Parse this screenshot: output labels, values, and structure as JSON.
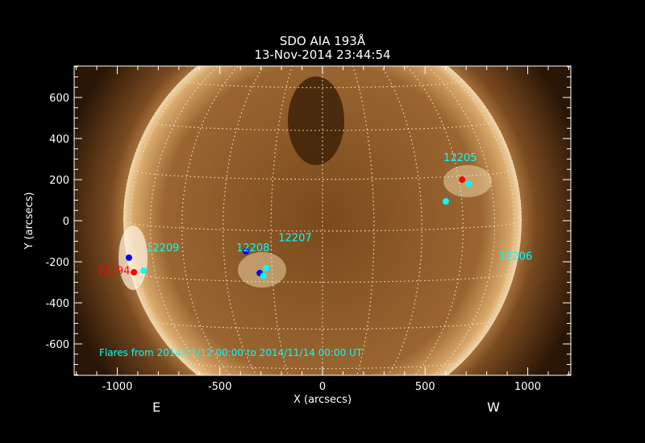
{
  "chart_data": {
    "type": "scatter",
    "title": "SDO AIA 193Å",
    "subtitle": "13-Nov-2014 23:44:54",
    "xlabel": "X (arcsecs)",
    "ylabel": "Y (arcsecs)",
    "xlim": [
      -1210,
      1210
    ],
    "ylim": [
      -753,
      753
    ],
    "xticks": [
      -1000,
      -500,
      0,
      500,
      1000
    ],
    "yticks": [
      -600,
      -400,
      -200,
      0,
      200,
      400,
      600
    ],
    "solar_radius_arcsec": 969,
    "grid": "heliographic, 15 degree spacing, dotted",
    "east_label": "E",
    "west_label": "W",
    "annotation": "Flares from 2014/11/12 00:00 to 2014/11/14 00:00 UT",
    "colors": {
      "red": "#ff0000",
      "blue": "#0000ff",
      "cyan": "#00ffff",
      "sun": "#b5793a"
    },
    "points": [
      {
        "x": -943,
        "y": -180,
        "color": "blue"
      },
      {
        "x": -919,
        "y": -251,
        "color": "red"
      },
      {
        "x": -872,
        "y": -243,
        "color": "cyan"
      },
      {
        "x": -373,
        "y": -149,
        "color": "blue"
      },
      {
        "x": -306,
        "y": -255,
        "color": "blue"
      },
      {
        "x": -275,
        "y": -231,
        "color": "cyan"
      },
      {
        "x": -288,
        "y": -268,
        "color": "cyan"
      },
      {
        "x": 680,
        "y": 200,
        "color": "red"
      },
      {
        "x": 711,
        "y": 180,
        "color": "cyan"
      },
      {
        "x": 601,
        "y": 94,
        "color": "cyan"
      }
    ],
    "region_labels": [
      {
        "text": "12194",
        "x": -1100,
        "y": -260,
        "color": "red"
      },
      {
        "text": "12209",
        "x": -860,
        "y": -150,
        "color": "cyan"
      },
      {
        "text": "12208",
        "x": -420,
        "y": -150,
        "color": "cyan"
      },
      {
        "text": "12207",
        "x": -215,
        "y": -100,
        "color": "cyan"
      },
      {
        "text": "12205",
        "x": 590,
        "y": 290,
        "color": "cyan"
      },
      {
        "text": "12206",
        "x": 860,
        "y": -190,
        "color": "cyan"
      }
    ]
  }
}
